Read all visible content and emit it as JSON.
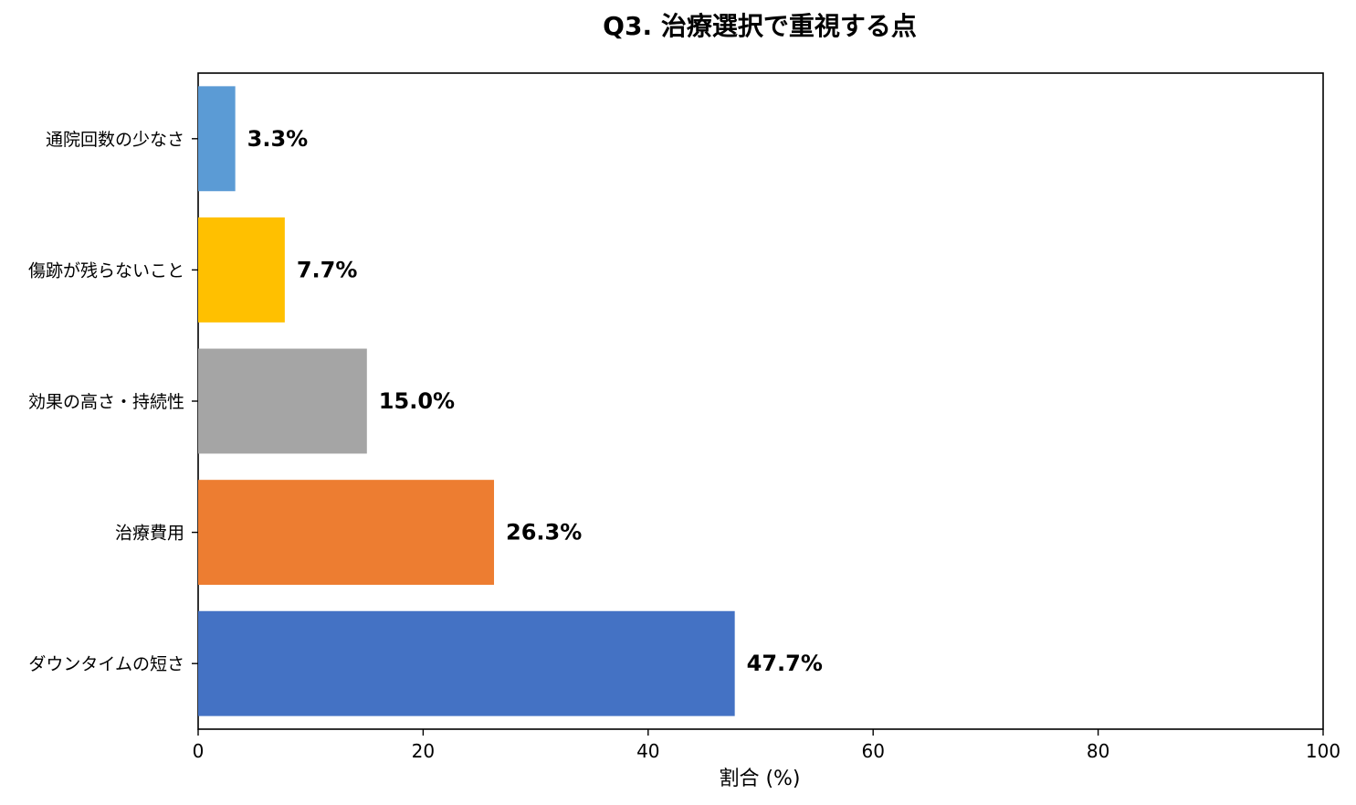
{
  "chart_data": {
    "type": "bar",
    "orientation": "horizontal",
    "title": "Q3. 治療選択で重視する点",
    "xlabel": "割合 (%)",
    "ylabel": "",
    "xlim": [
      0,
      100
    ],
    "x_ticks": [
      "0",
      "20",
      "40",
      "60",
      "80",
      "100"
    ],
    "categories": [
      "通院回数の少なさ",
      "傷跡が残らないこと",
      "効果の高さ・持続性",
      "治療費用",
      "ダウンタイムの短さ"
    ],
    "values": [
      3.3,
      7.7,
      15.0,
      26.3,
      47.7
    ],
    "value_labels": [
      "3.3%",
      "7.7%",
      "15.0%",
      "26.3%",
      "47.7%"
    ],
    "colors": [
      "#5B9BD5",
      "#FFC000",
      "#A5A5A5",
      "#ED7D31",
      "#4472C4"
    ],
    "grid": false,
    "legend": "none"
  }
}
